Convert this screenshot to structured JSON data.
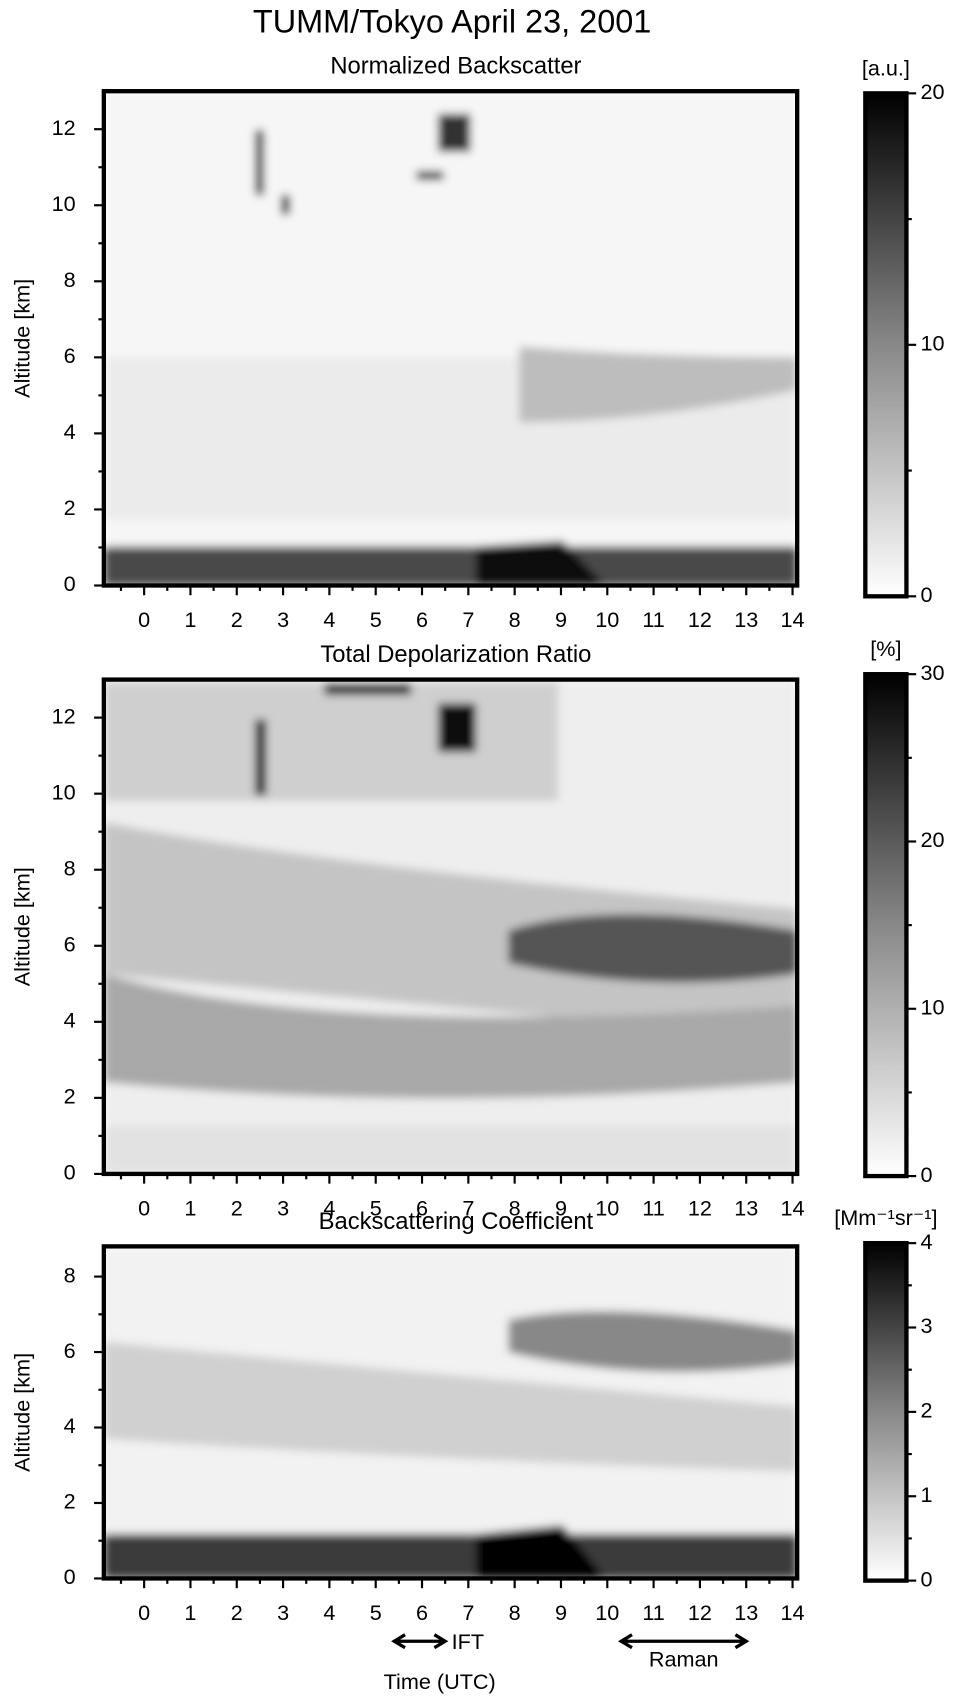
{
  "title": "TUMM/Tokyo April 23, 2001",
  "chart_data": [
    {
      "type": "heatmap",
      "title": "Normalized Backscatter",
      "ylabel": "Altitude [km]",
      "xlim": [
        -0.87,
        14.1
      ],
      "xticks": [
        0,
        1,
        2,
        3,
        4,
        5,
        6,
        7,
        8,
        9,
        10,
        11,
        12,
        13,
        14
      ],
      "ylim": [
        0,
        13
      ],
      "yticks": [
        0,
        2,
        4,
        6,
        8,
        10,
        12
      ],
      "colorbar": {
        "label": "[a.u.]",
        "lim": [
          0,
          20
        ],
        "ticks": [
          0,
          10,
          20
        ]
      }
    },
    {
      "type": "heatmap",
      "title": "Total Depolarization Ratio",
      "ylabel": "Altitude [km]",
      "xlim": [
        -0.87,
        14.1
      ],
      "xticks": [
        0,
        1,
        2,
        3,
        4,
        5,
        6,
        7,
        8,
        9,
        10,
        11,
        12,
        13,
        14
      ],
      "ylim": [
        0,
        13
      ],
      "yticks": [
        0,
        2,
        4,
        6,
        8,
        10,
        12
      ],
      "colorbar": {
        "label": "[%]",
        "lim": [
          0,
          30
        ],
        "ticks": [
          0,
          10,
          20,
          30
        ]
      }
    },
    {
      "type": "heatmap",
      "title": "Backscattering Coefficient",
      "ylabel": "Altitude [km]",
      "xlabel": "Time (UTC)",
      "xlim": [
        -0.87,
        14.1
      ],
      "xticks": [
        0,
        1,
        2,
        3,
        4,
        5,
        6,
        7,
        8,
        9,
        10,
        11,
        12,
        13,
        14
      ],
      "ylim": [
        0,
        8.8
      ],
      "yticks": [
        0,
        2,
        4,
        6,
        8
      ],
      "colorbar": {
        "label": "[Mm⁻¹sr⁻¹]",
        "lim": [
          0,
          4
        ],
        "ticks": [
          0,
          1,
          2,
          3,
          4
        ]
      },
      "annotations": [
        {
          "text": "IFT",
          "x": [
            5.4,
            6.5
          ]
        },
        {
          "text": "Raman",
          "x": [
            10.3,
            13.0
          ]
        }
      ]
    }
  ]
}
